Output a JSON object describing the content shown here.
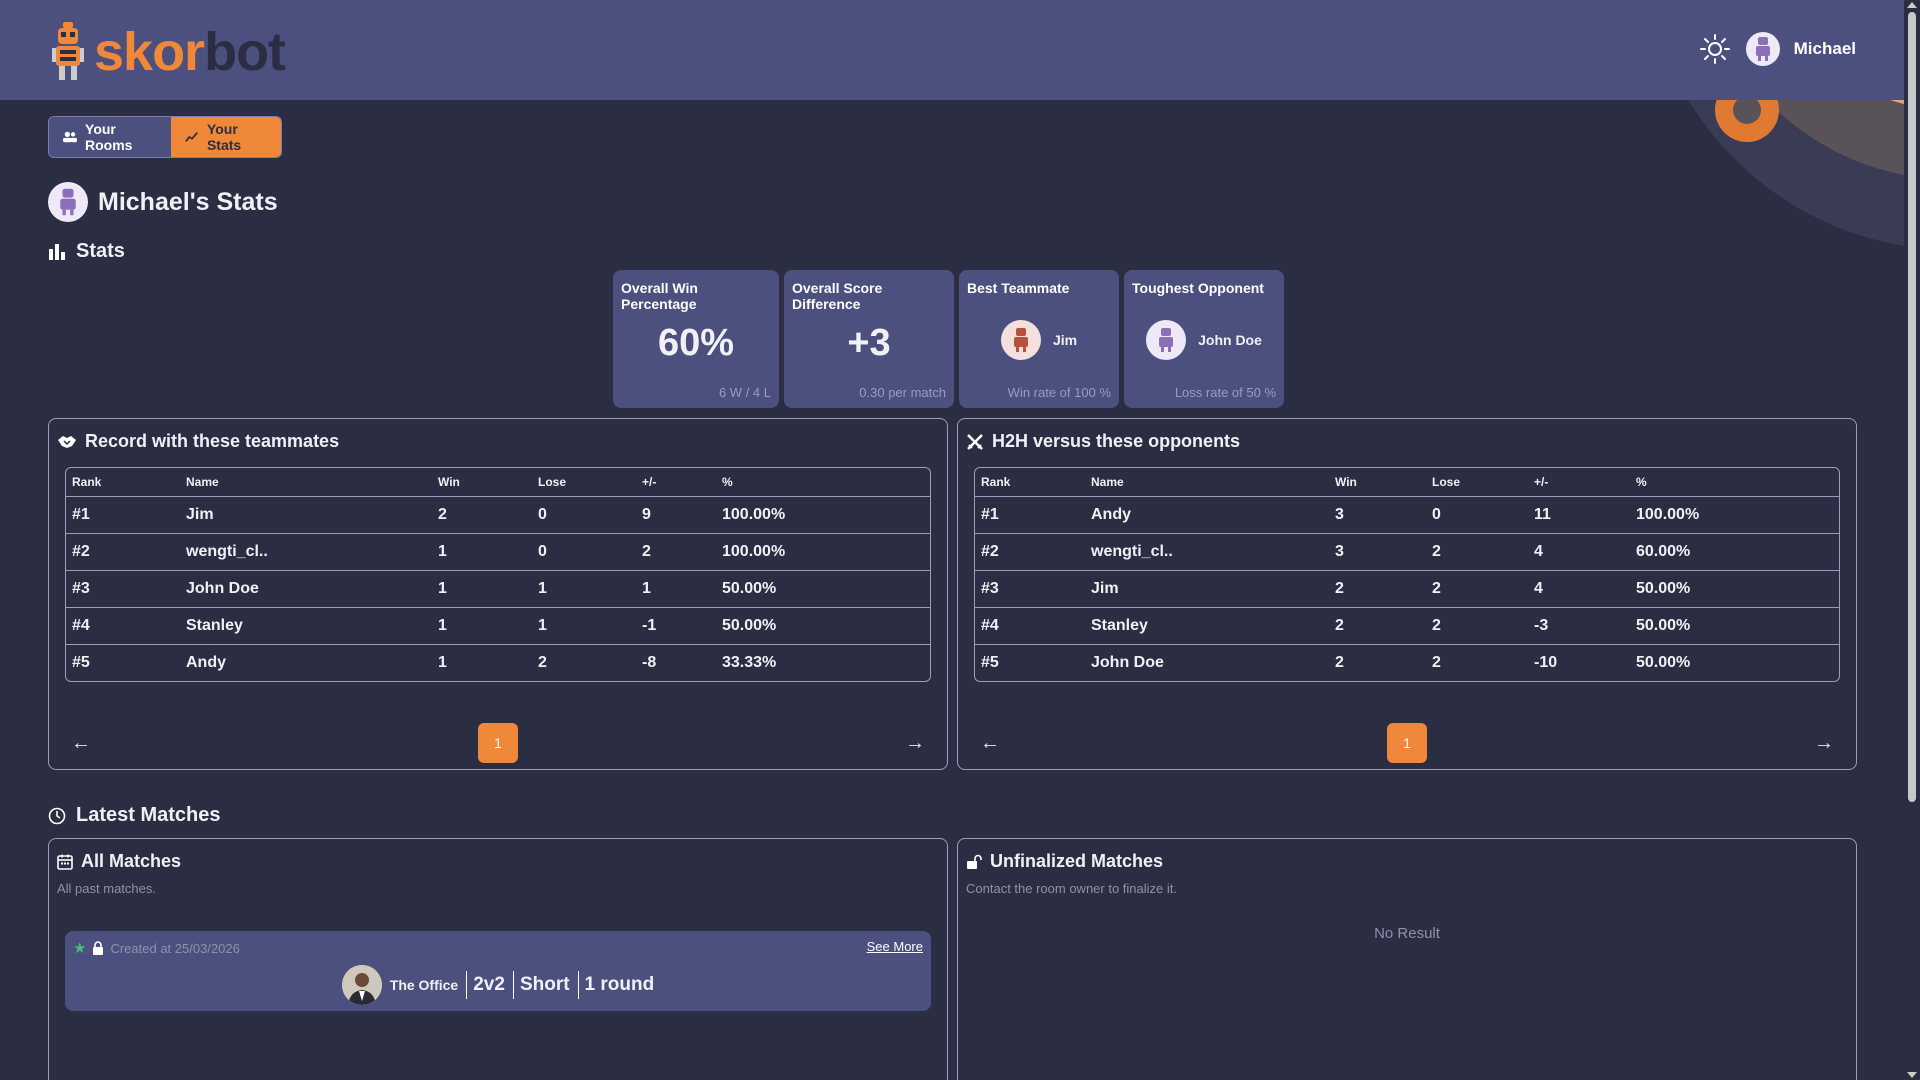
{
  "header": {
    "logo_part1": "skor",
    "logo_part2": "bot",
    "user_name": "Michael"
  },
  "tabs": [
    {
      "label": "Your Rooms",
      "active": false
    },
    {
      "label": "Your Stats",
      "active": true
    }
  ],
  "page_title": "Michael's Stats",
  "stats_section": "Stats",
  "cards": {
    "win_pct": {
      "title": "Overall Win Percentage",
      "value": "60%",
      "foot": "6 W / 4 L"
    },
    "score_diff": {
      "title": "Overall Score Difference",
      "value": "+3",
      "foot": "0.30 per match"
    },
    "best_teammate": {
      "title": "Best Teammate",
      "name": "Jim",
      "foot": "Win rate of 100 %"
    },
    "toughest_opponent": {
      "title": "Toughest Opponent",
      "name": "John Doe",
      "foot": "Loss rate of 50 %"
    }
  },
  "teammates": {
    "title": "Record with these teammates",
    "columns": [
      "Rank",
      "Name",
      "Win",
      "Lose",
      "+/-",
      "%"
    ],
    "rows": [
      [
        "#1",
        "Jim",
        "2",
        "0",
        "9",
        "100.00%"
      ],
      [
        "#2",
        "wengti_cl..",
        "1",
        "0",
        "2",
        "100.00%"
      ],
      [
        "#3",
        "John Doe",
        "1",
        "1",
        "1",
        "50.00%"
      ],
      [
        "#4",
        "Stanley",
        "1",
        "1",
        "-1",
        "50.00%"
      ],
      [
        "#5",
        "Andy",
        "1",
        "2",
        "-8",
        "33.33%"
      ]
    ],
    "page": "1"
  },
  "opponents": {
    "title": "H2H versus these opponents",
    "columns": [
      "Rank",
      "Name",
      "Win",
      "Lose",
      "+/-",
      "%"
    ],
    "rows": [
      [
        "#1",
        "Andy",
        "3",
        "0",
        "11",
        "100.00%"
      ],
      [
        "#2",
        "wengti_cl..",
        "3",
        "2",
        "4",
        "60.00%"
      ],
      [
        "#3",
        "Jim",
        "2",
        "2",
        "4",
        "50.00%"
      ],
      [
        "#4",
        "Stanley",
        "2",
        "2",
        "-3",
        "50.00%"
      ],
      [
        "#5",
        "John Doe",
        "2",
        "2",
        "-10",
        "50.00%"
      ]
    ],
    "page": "1"
  },
  "latest_section": "Latest Matches",
  "all_matches": {
    "title": "All Matches",
    "subtitle": "All past matches.",
    "match": {
      "created": "Created at 25/03/2026",
      "see_more": "See More",
      "room": "The Office",
      "mode": "2v2",
      "length": "Short",
      "rounds": "1 round"
    }
  },
  "unfinalized": {
    "title": "Unfinalized Matches",
    "subtitle": "Contact the room owner to finalize it.",
    "empty": "No Result"
  },
  "colors": {
    "accent": "#f0883a",
    "header_bg": "#4b507e",
    "page_bg": "#2b2d42"
  }
}
